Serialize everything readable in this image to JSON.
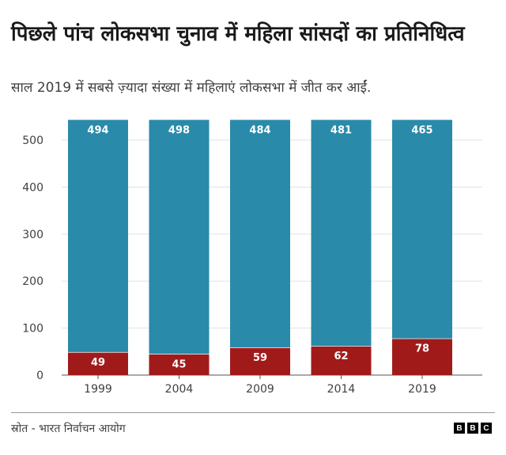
{
  "title": "पिछले पांच लोकसभा चुनाव में महिला सांसदों का प्रतिनिधित्व",
  "subtitle": "साल 2019 में सबसे ज़्यादा संख्या में महिलाएं लोकसभा में जीत कर आईं.",
  "source": "स्रोत - भारत निर्वाचन आयोग",
  "logo": "BBC",
  "chart_data": {
    "type": "bar",
    "stacked": true,
    "categories": [
      "1999",
      "2004",
      "2009",
      "2014",
      "2019"
    ],
    "series": [
      {
        "values": [
          49,
          45,
          59,
          62,
          78
        ],
        "color": "#a11a1a"
      },
      {
        "values": [
          494,
          498,
          484,
          481,
          465
        ],
        "color": "#2a8aa9"
      }
    ],
    "yticks": [
      0,
      100,
      200,
      300,
      400,
      500
    ],
    "ylim": [
      0,
      543
    ],
    "grid": true,
    "legend": "none"
  }
}
